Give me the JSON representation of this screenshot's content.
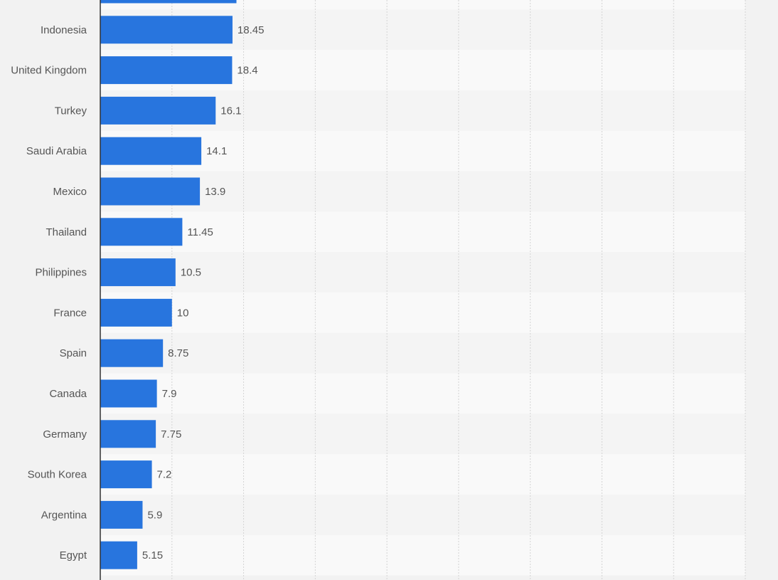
{
  "chart_data": {
    "type": "bar",
    "orientation": "horizontal",
    "categories": [
      "",
      "Indonesia",
      "United Kingdom",
      "Turkey",
      "Saudi Arabia",
      "Mexico",
      "Thailand",
      "Philippines",
      "France",
      "Spain",
      "Canada",
      "Germany",
      "South Korea",
      "Argentina",
      "Egypt"
    ],
    "values": [
      19,
      18.45,
      18.4,
      16.1,
      14.1,
      13.9,
      11.45,
      10.5,
      10,
      8.75,
      7.9,
      7.75,
      7.2,
      5.9,
      5.15
    ],
    "value_labels": [
      "",
      "18.45",
      "18.4",
      "16.1",
      "14.1",
      "13.9",
      "11.45",
      "10.5",
      "10",
      "8.75",
      "7.9",
      "7.75",
      "7.2",
      "5.9",
      "5.15"
    ],
    "xlim": [
      0,
      90
    ],
    "x_gridlines": [
      10,
      20,
      30,
      40,
      50,
      60,
      70,
      80,
      90
    ],
    "grid": true,
    "bar_color": "#2875de",
    "band_colors": [
      "#f9f9f9",
      "#f4f4f4"
    ],
    "background": "#f2f2f2",
    "text_color": "#555555"
  }
}
